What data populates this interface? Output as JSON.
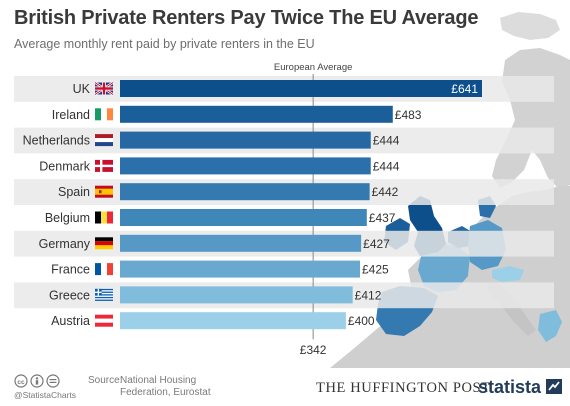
{
  "header": {
    "title": "British Private Renters Pay Twice The EU Average",
    "subtitle": "Average monthly rent paid by private renters in the EU"
  },
  "chart_data": {
    "type": "bar",
    "orientation": "horizontal",
    "title": "British Private Renters Pay Twice The EU Average",
    "subtitle": "Average monthly rent paid by private renters in the EU",
    "currency": "£",
    "categories": [
      "UK",
      "Ireland",
      "Netherlands",
      "Denmark",
      "Spain",
      "Belgium",
      "Germany",
      "France",
      "Greece",
      "Austria"
    ],
    "values": [
      641,
      483,
      444,
      444,
      442,
      437,
      427,
      425,
      412,
      400
    ],
    "value_labels": [
      "£641",
      "£483",
      "£444",
      "£444",
      "£442",
      "£437",
      "£427",
      "£425",
      "£412",
      "£400"
    ],
    "bar_colors": [
      "#0d4f8b",
      "#1a5f9a",
      "#2668a3",
      "#2b70aa",
      "#3479b0",
      "#3f86b9",
      "#5699c6",
      "#69a9cf",
      "#80bcdc",
      "#9bd0e8"
    ],
    "reference_line": {
      "label": "European Average",
      "value": 342,
      "value_label": "£342"
    },
    "xlim": [
      0,
      660
    ],
    "grid": false,
    "legend": "none"
  },
  "flag_icons": [
    "uk-flag-icon",
    "ireland-flag-icon",
    "netherlands-flag-icon",
    "denmark-flag-icon",
    "spain-flag-icon",
    "belgium-flag-icon",
    "germany-flag-icon",
    "france-flag-icon",
    "greece-flag-icon",
    "austria-flag-icon"
  ],
  "map_colors": {
    "land": "#cfcfcf",
    "uk": "#0d4f8b",
    "highlight_mid": "#3479b0",
    "highlight_light": "#80bcdc",
    "sea": "#ffffff"
  },
  "footer": {
    "credit": "@StatistaCharts",
    "source_label": "Source:",
    "source_text": "National Housing Federation, Eurostat",
    "partner": "THE HUFFINGTON POST",
    "brand": "statista"
  }
}
